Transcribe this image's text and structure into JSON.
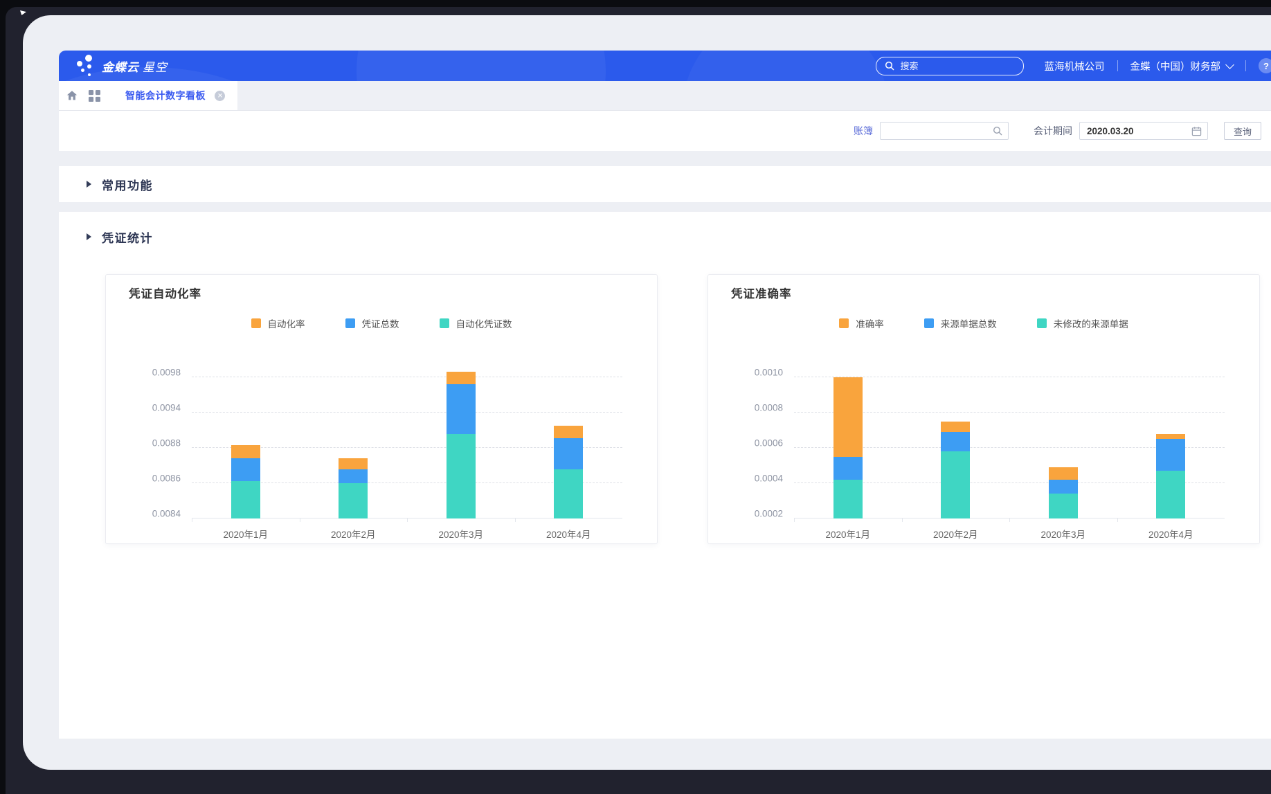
{
  "header": {
    "logo_bold": "金蝶云",
    "logo_light": "星空",
    "search_placeholder": "搜索",
    "company": "蓝海机械公司",
    "department": "金蝶（中国）财务部",
    "help": "?"
  },
  "tabbar": {
    "active_tab": "智能会计数字看板"
  },
  "filters": {
    "ledger_label": "账簿",
    "ledger_value": "",
    "period_label": "会计期间",
    "period_value": "2020.03.20",
    "query_label": "查询"
  },
  "sections": {
    "common_functions": "常用功能",
    "voucher_stats": "凭证统计"
  },
  "colors": {
    "orange": "#F9A43D",
    "blue": "#3D9DF3",
    "teal": "#3FD6C3",
    "header_blue": "#2B5AEC",
    "accent": "#3B5BF0"
  },
  "chart_data": [
    {
      "type": "bar",
      "stacked": true,
      "title": "凭证自动化率",
      "categories": [
        "2020年1月",
        "2020年2月",
        "2020年3月",
        "2020年4月"
      ],
      "y_ticks": [
        "0.0084",
        "0.0086",
        "0.0088",
        "0.0094",
        "0.0098"
      ],
      "axis_note": "tick labels evenly spaced as shown; grid on; legend top-center",
      "legend": [
        {
          "label": "自动化率",
          "color": "#F9A43D"
        },
        {
          "label": "凭证总数",
          "color": "#3D9DF3"
        },
        {
          "label": "自动化凭证数",
          "color": "#3FD6C3"
        }
      ],
      "series": [
        {
          "name": "自动化凭证数",
          "color": "#3FD6C3",
          "stack_tops": [
            0.00861,
            0.0086,
            0.00903,
            0.00868
          ]
        },
        {
          "name": "凭证总数",
          "color": "#3D9DF3",
          "stack_tops": [
            0.00874,
            0.00868,
            0.00972,
            0.00897
          ]
        },
        {
          "name": "自动化率",
          "color": "#F9A43D",
          "stack_tops": [
            0.00885,
            0.00874,
            0.00986,
            0.00918
          ]
        }
      ]
    },
    {
      "type": "bar",
      "stacked": true,
      "title": "凭证准确率",
      "categories": [
        "2020年1月",
        "2020年2月",
        "2020年3月",
        "2020年4月"
      ],
      "y_ticks": [
        "0.0002",
        "0.0004",
        "0.0006",
        "0.0008",
        "0.0010"
      ],
      "axis_note": "linear axis from 0.0002 baseline; grid on; legend top-center",
      "legend": [
        {
          "label": "准确率",
          "color": "#F9A43D"
        },
        {
          "label": "来源单据总数",
          "color": "#3D9DF3"
        },
        {
          "label": "未修改的来源单据",
          "color": "#3FD6C3"
        }
      ],
      "series": [
        {
          "name": "未修改的来源单据",
          "color": "#3FD6C3",
          "stack_tops": [
            0.00042,
            0.00058,
            0.00034,
            0.00047
          ]
        },
        {
          "name": "来源单据总数",
          "color": "#3D9DF3",
          "stack_tops": [
            0.00055,
            0.00069,
            0.00042,
            0.00065
          ]
        },
        {
          "name": "准确率",
          "color": "#F9A43D",
          "stack_tops": [
            0.001,
            0.00075,
            0.00049,
            0.00068
          ]
        }
      ]
    }
  ]
}
